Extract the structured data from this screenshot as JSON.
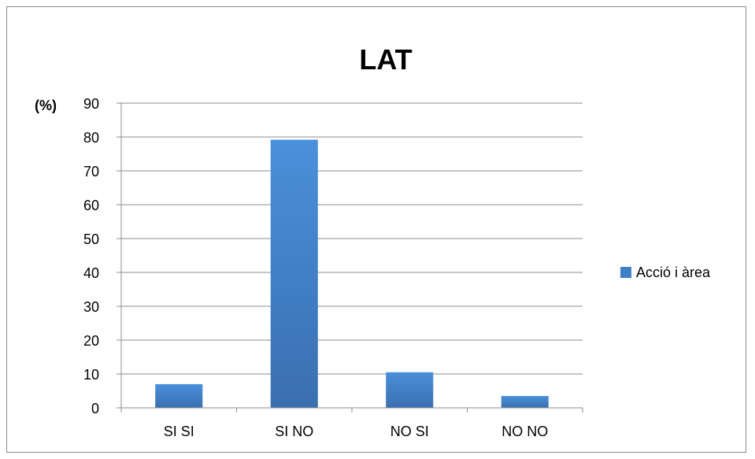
{
  "chart_data": {
    "type": "bar",
    "title": "LAT",
    "ylabel": "(%)",
    "xlabel": "",
    "categories": [
      "SI SI",
      "SI NO",
      "NO SI",
      "NO NO"
    ],
    "series": [
      {
        "name": "Acció i àrea",
        "values": [
          7,
          79.2,
          10.5,
          3.5
        ],
        "color": "#3f7fc6"
      }
    ],
    "ylim": [
      0,
      90
    ],
    "yticks": [
      "0",
      "10",
      "20",
      "30",
      "40",
      "50",
      "60",
      "70",
      "80",
      "90"
    ],
    "grid": true,
    "legend": "right"
  }
}
